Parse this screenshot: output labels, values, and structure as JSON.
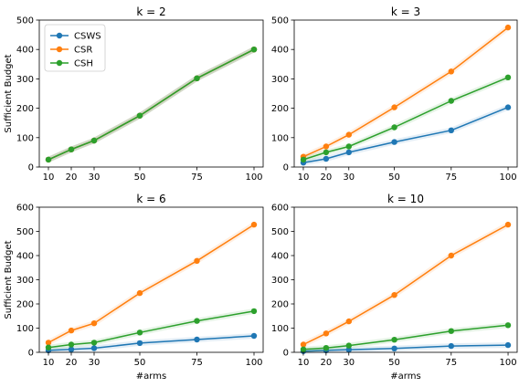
{
  "figure": {
    "shared_xlabel": "#arms",
    "shared_ylabel": "Sufficient Budget",
    "series_names": [
      "CSWS",
      "CSR",
      "CSH"
    ],
    "series_colors": [
      "#1f77b4",
      "#ff7f0e",
      "#2ca02c"
    ]
  },
  "chart_data": [
    {
      "type": "line",
      "title": "k = 2",
      "xlabel": "",
      "ylabel": "Sufficient Budget",
      "x": [
        10,
        20,
        30,
        50,
        75,
        100
      ],
      "xlim": [
        6,
        104
      ],
      "ylim": [
        0,
        500
      ],
      "yticks": [
        0,
        100,
        200,
        300,
        400,
        500
      ],
      "legend": "top-left",
      "grid": false,
      "series": [
        {
          "name": "CSWS",
          "values": [
            25,
            60,
            90,
            175,
            302,
            400
          ]
        },
        {
          "name": "CSR",
          "values": [
            25,
            60,
            90,
            175,
            302,
            400
          ]
        },
        {
          "name": "CSH",
          "values": [
            25,
            60,
            90,
            175,
            302,
            400
          ]
        }
      ]
    },
    {
      "type": "line",
      "title": "k = 3",
      "xlabel": "",
      "ylabel": "",
      "x": [
        10,
        20,
        30,
        50,
        75,
        100
      ],
      "xlim": [
        6,
        104
      ],
      "ylim": [
        0,
        500
      ],
      "yticks": [
        0,
        100,
        200,
        300,
        400,
        500
      ],
      "grid": false,
      "series": [
        {
          "name": "CSWS",
          "values": [
            15,
            28,
            50,
            85,
            125,
            203
          ]
        },
        {
          "name": "CSR",
          "values": [
            35,
            70,
            110,
            203,
            325,
            475
          ]
        },
        {
          "name": "CSH",
          "values": [
            25,
            50,
            70,
            135,
            225,
            305
          ]
        }
      ]
    },
    {
      "type": "line",
      "title": "k = 6",
      "xlabel": "#arms",
      "ylabel": "Sufficient Budget",
      "x": [
        10,
        20,
        30,
        50,
        75,
        100
      ],
      "xlim": [
        6,
        104
      ],
      "ylim": [
        0,
        600
      ],
      "yticks": [
        0,
        100,
        200,
        300,
        400,
        500,
        600
      ],
      "grid": false,
      "series": [
        {
          "name": "CSWS",
          "values": [
            8,
            12,
            17,
            38,
            53,
            68
          ]
        },
        {
          "name": "CSR",
          "values": [
            40,
            90,
            120,
            245,
            378,
            528
          ]
        },
        {
          "name": "CSH",
          "values": [
            20,
            32,
            40,
            82,
            130,
            170
          ]
        }
      ]
    },
    {
      "type": "line",
      "title": "k = 10",
      "xlabel": "#arms",
      "ylabel": "",
      "x": [
        10,
        20,
        30,
        50,
        75,
        100
      ],
      "xlim": [
        6,
        104
      ],
      "ylim": [
        0,
        600
      ],
      "yticks": [
        0,
        100,
        200,
        300,
        400,
        500,
        600
      ],
      "grid": false,
      "series": [
        {
          "name": "CSWS",
          "values": [
            5,
            8,
            11,
            16,
            26,
            30
          ]
        },
        {
          "name": "CSR",
          "values": [
            32,
            78,
            128,
            237,
            400,
            528
          ]
        },
        {
          "name": "CSH",
          "values": [
            12,
            18,
            28,
            52,
            88,
            112
          ]
        }
      ]
    }
  ]
}
